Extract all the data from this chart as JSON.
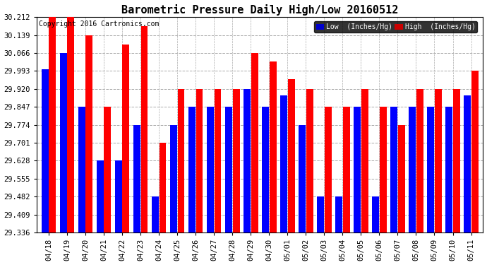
{
  "title": "Barometric Pressure Daily High/Low 20160512",
  "copyright": "Copyright 2016 Cartronics.com",
  "ylabel_low": "Low  (Inches/Hg)",
  "ylabel_high": "High  (Inches/Hg)",
  "background_color": "#ffffff",
  "plot_bg_color": "#ffffff",
  "bar_color_low": "#0000ff",
  "bar_color_high": "#ff0000",
  "dates": [
    "04/18",
    "04/19",
    "04/20",
    "04/21",
    "04/22",
    "04/23",
    "04/24",
    "04/25",
    "04/26",
    "04/27",
    "04/28",
    "04/29",
    "04/30",
    "05/01",
    "05/02",
    "05/03",
    "05/04",
    "05/05",
    "05/06",
    "05/07",
    "05/08",
    "05/09",
    "05/10",
    "05/11"
  ],
  "high_values": [
    30.212,
    30.212,
    30.139,
    29.847,
    30.1,
    30.175,
    29.701,
    29.92,
    29.92,
    29.92,
    29.92,
    30.066,
    30.03,
    29.96,
    29.92,
    29.847,
    29.847,
    29.92,
    29.847,
    29.774,
    29.92,
    29.92,
    29.92,
    29.993
  ],
  "low_values": [
    30.0,
    30.066,
    29.847,
    29.628,
    29.628,
    29.774,
    29.482,
    29.774,
    29.847,
    29.847,
    29.847,
    29.92,
    29.847,
    29.893,
    29.774,
    29.482,
    29.482,
    29.847,
    29.482,
    29.847,
    29.847,
    29.847,
    29.847,
    29.893
  ],
  "ymin": 29.336,
  "ymax": 30.212,
  "yticks": [
    29.336,
    29.409,
    29.482,
    29.555,
    29.628,
    29.701,
    29.774,
    29.847,
    29.92,
    29.993,
    30.066,
    30.139,
    30.212
  ],
  "grid_color": "#aaaaaa",
  "title_fontsize": 11,
  "tick_fontsize": 7.5,
  "copyright_fontsize": 7,
  "text_color": "#000000",
  "legend_low_bg": "#0000cc",
  "legend_high_bg": "#cc0000"
}
